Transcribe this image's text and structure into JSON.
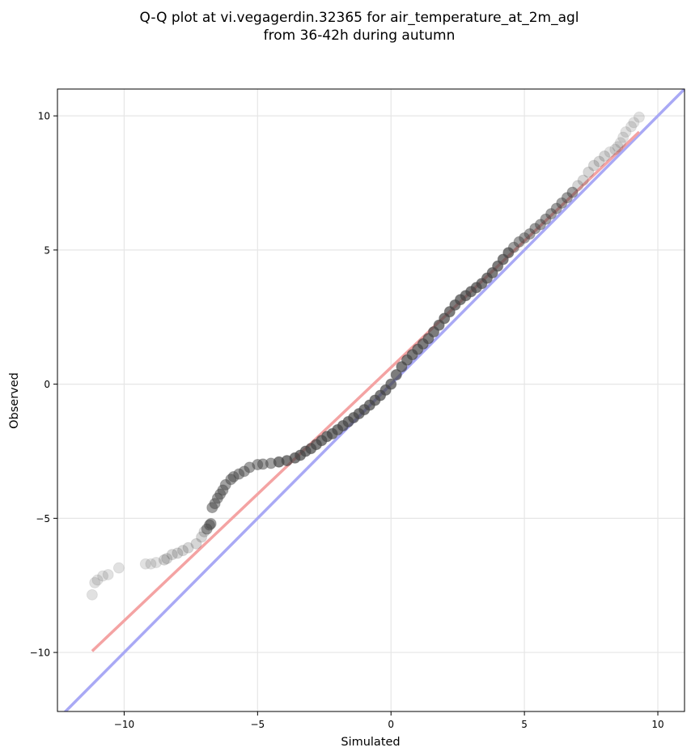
{
  "chart_data": {
    "type": "scatter",
    "title_lines": [
      "Q-Q plot at vi.vegagerdin.32365 for air_temperature_at_2m_agl",
      "from 36-42h during autumn"
    ],
    "xlabel": "Simulated",
    "ylabel": "Observed",
    "xlim": [
      -12.5,
      11.0
    ],
    "ylim": [
      -12.2,
      11.0
    ],
    "x_ticks": [
      -10,
      -5,
      0,
      5,
      10
    ],
    "y_ticks": [
      -10,
      -5,
      0,
      5,
      10
    ],
    "x_tick_labels": [
      "−10",
      "−5",
      "0",
      "5",
      "10"
    ],
    "y_tick_labels": [
      "−10",
      "−5",
      "0",
      "5",
      "10"
    ],
    "grid": true,
    "point_color": "#444444",
    "fit_line_color": "#f4a3a3",
    "identity_line_color": "#a9a9f5",
    "series": [
      {
        "kind": "identity_line",
        "x": [
          -12.5,
          11.0
        ],
        "y": [
          -12.5,
          11.0
        ]
      },
      {
        "kind": "fit_line",
        "x": [
          -11.2,
          9.3
        ],
        "y": [
          -9.95,
          9.4
        ]
      },
      {
        "kind": "quantile_points",
        "x": [
          -11.2,
          -11.1,
          -11.0,
          -10.8,
          -10.6,
          -10.2,
          -9.2,
          -9.0,
          -8.8,
          -8.5,
          -8.4,
          -8.2,
          -8.0,
          -7.8,
          -7.6,
          -7.3,
          -7.1,
          -7.0,
          -6.9,
          -6.8,
          -6.75,
          -6.7,
          -6.6,
          -6.5,
          -6.4,
          -6.3,
          -6.2,
          -6.0,
          -5.9,
          -5.7,
          -5.5,
          -5.3,
          -5.0,
          -4.8,
          -4.5,
          -4.2,
          -3.9,
          -3.6,
          -3.4,
          -3.2,
          -3.0,
          -2.8,
          -2.6,
          -2.4,
          -2.2,
          -2.0,
          -1.8,
          -1.6,
          -1.4,
          -1.2,
          -1.0,
          -0.8,
          -0.6,
          -0.4,
          -0.2,
          0.0,
          0.2,
          0.4,
          0.6,
          0.8,
          1.0,
          1.2,
          1.4,
          1.6,
          1.8,
          2.0,
          2.2,
          2.4,
          2.6,
          2.8,
          3.0,
          3.2,
          3.4,
          3.6,
          3.8,
          4.0,
          4.2,
          4.4,
          4.6,
          4.8,
          5.0,
          5.2,
          5.4,
          5.6,
          5.8,
          6.0,
          6.2,
          6.4,
          6.6,
          6.8,
          7.0,
          7.2,
          7.4,
          7.6,
          7.8,
          8.0,
          8.2,
          8.4,
          8.5,
          8.6,
          8.7,
          8.8,
          9.0,
          9.1,
          9.3
        ],
        "y": [
          -7.85,
          -7.4,
          -7.3,
          -7.15,
          -7.1,
          -6.85,
          -6.7,
          -6.7,
          -6.65,
          -6.55,
          -6.5,
          -6.35,
          -6.3,
          -6.2,
          -6.1,
          -5.95,
          -5.7,
          -5.5,
          -5.4,
          -5.25,
          -5.2,
          -4.6,
          -4.45,
          -4.25,
          -4.1,
          -3.95,
          -3.75,
          -3.55,
          -3.45,
          -3.35,
          -3.25,
          -3.1,
          -3.0,
          -2.98,
          -2.95,
          -2.9,
          -2.85,
          -2.75,
          -2.65,
          -2.5,
          -2.4,
          -2.25,
          -2.1,
          -1.95,
          -1.85,
          -1.7,
          -1.55,
          -1.4,
          -1.25,
          -1.1,
          -0.95,
          -0.78,
          -0.6,
          -0.42,
          -0.22,
          0.0,
          0.35,
          0.65,
          0.9,
          1.1,
          1.3,
          1.5,
          1.7,
          1.95,
          2.2,
          2.45,
          2.7,
          2.95,
          3.15,
          3.3,
          3.45,
          3.6,
          3.75,
          3.95,
          4.15,
          4.4,
          4.65,
          4.9,
          5.1,
          5.3,
          5.45,
          5.6,
          5.8,
          5.95,
          6.15,
          6.35,
          6.55,
          6.75,
          6.95,
          7.15,
          7.4,
          7.6,
          7.9,
          8.15,
          8.3,
          8.5,
          8.65,
          8.75,
          8.85,
          9.0,
          9.2,
          9.4,
          9.6,
          9.75,
          9.95
        ]
      }
    ]
  }
}
